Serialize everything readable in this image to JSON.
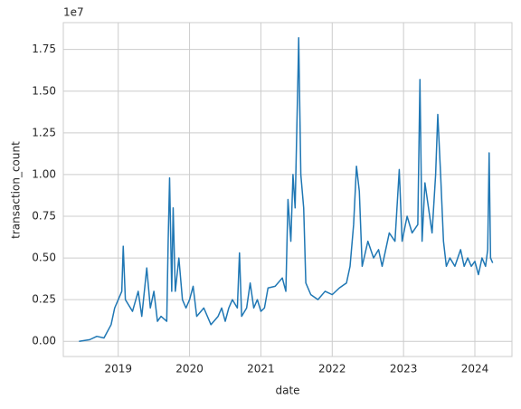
{
  "chart_data": {
    "type": "line",
    "xlabel": "date",
    "ylabel": "transaction_count",
    "y_offset_label": "1e7",
    "x": [
      2018.45,
      2018.6,
      2018.7,
      2018.8,
      2018.9,
      2018.95,
      2019.0,
      2019.05,
      2019.07,
      2019.1,
      2019.2,
      2019.28,
      2019.33,
      2019.4,
      2019.45,
      2019.5,
      2019.55,
      2019.6,
      2019.68,
      2019.7,
      2019.72,
      2019.75,
      2019.77,
      2019.8,
      2019.85,
      2019.9,
      2019.95,
      2020.0,
      2020.05,
      2020.1,
      2020.2,
      2020.3,
      2020.4,
      2020.45,
      2020.5,
      2020.55,
      2020.6,
      2020.67,
      2020.7,
      2020.73,
      2020.8,
      2020.85,
      2020.9,
      2020.95,
      2021.0,
      2021.05,
      2021.1,
      2021.2,
      2021.3,
      2021.35,
      2021.38,
      2021.42,
      2021.45,
      2021.48,
      2021.52,
      2021.53,
      2021.56,
      2021.6,
      2021.63,
      2021.7,
      2021.8,
      2021.9,
      2022.0,
      2022.1,
      2022.2,
      2022.25,
      2022.3,
      2022.34,
      2022.38,
      2022.42,
      2022.5,
      2022.58,
      2022.65,
      2022.7,
      2022.8,
      2022.88,
      2022.94,
      2022.98,
      2023.05,
      2023.12,
      2023.2,
      2023.23,
      2023.26,
      2023.3,
      2023.35,
      2023.4,
      2023.45,
      2023.48,
      2023.52,
      2023.56,
      2023.6,
      2023.65,
      2023.72,
      2023.8,
      2023.85,
      2023.9,
      2023.95,
      2024.0,
      2024.05,
      2024.1,
      2024.15,
      2024.18,
      2024.2,
      2024.22,
      2024.25
    ],
    "series": [
      {
        "name": "transaction_count",
        "color": "#1f77b4",
        "values": [
          0.0,
          0.01,
          0.03,
          0.02,
          0.1,
          0.2,
          0.25,
          0.3,
          0.57,
          0.25,
          0.18,
          0.3,
          0.15,
          0.44,
          0.2,
          0.3,
          0.12,
          0.15,
          0.12,
          0.6,
          0.98,
          0.3,
          0.8,
          0.3,
          0.5,
          0.25,
          0.2,
          0.25,
          0.33,
          0.15,
          0.2,
          0.1,
          0.15,
          0.2,
          0.12,
          0.2,
          0.25,
          0.2,
          0.53,
          0.15,
          0.2,
          0.35,
          0.2,
          0.25,
          0.18,
          0.2,
          0.32,
          0.33,
          0.38,
          0.3,
          0.85,
          0.6,
          1.0,
          0.8,
          1.6,
          1.82,
          1.0,
          0.8,
          0.35,
          0.28,
          0.25,
          0.3,
          0.28,
          0.32,
          0.35,
          0.45,
          0.7,
          1.05,
          0.9,
          0.45,
          0.6,
          0.5,
          0.55,
          0.45,
          0.65,
          0.6,
          1.03,
          0.6,
          0.75,
          0.65,
          0.7,
          1.57,
          0.6,
          0.95,
          0.8,
          0.65,
          1.0,
          1.36,
          1.0,
          0.6,
          0.45,
          0.5,
          0.45,
          0.55,
          0.45,
          0.5,
          0.45,
          0.48,
          0.4,
          0.5,
          0.45,
          0.55,
          1.13,
          0.5,
          0.47
        ]
      }
    ],
    "xlim": [
      2018.23,
      2024.52
    ],
    "xticks": [
      2019,
      2020,
      2021,
      2022,
      2023,
      2024
    ],
    "ylim": [
      -0.091,
      1.911
    ],
    "yticks": [
      {
        "value": 0,
        "label": "0.00"
      },
      0.25,
      {
        "value": 0.5,
        "label": "0.50"
      },
      0.75,
      {
        "value": 1,
        "label": "1.00"
      },
      1.25,
      {
        "value": 1.5,
        "label": "1.50"
      },
      1.75
    ],
    "grid": true
  }
}
